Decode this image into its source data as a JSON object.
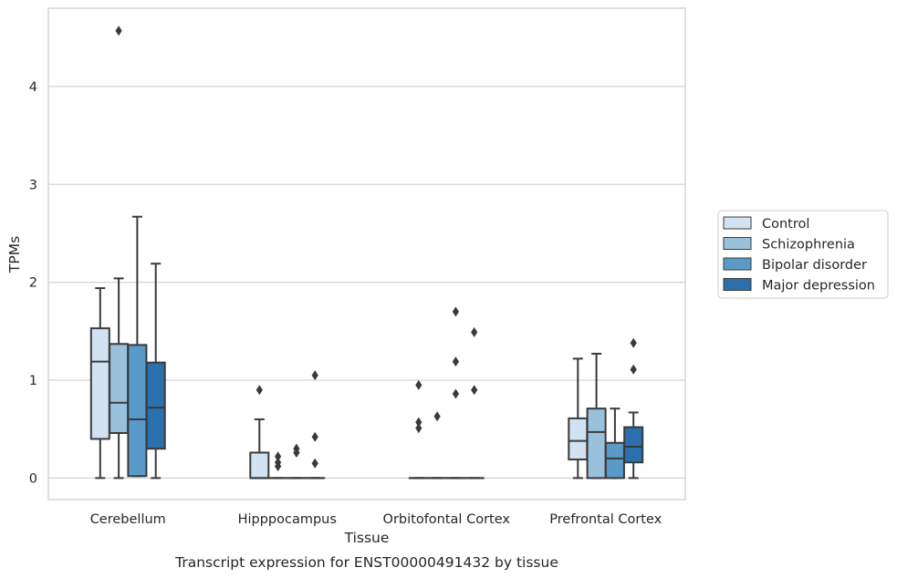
{
  "chart_data": {
    "type": "box",
    "xlabel": "Tissue",
    "ylabel": "TPMs",
    "caption": "Transcript expression for ENST00000491432 by tissue",
    "ylim": [
      -0.22,
      4.8
    ],
    "yticks": [
      0,
      1,
      2,
      3,
      4
    ],
    "grid": "horizontal",
    "legend_position": "right",
    "categories": [
      "Cerebellum",
      "Hipppocampus",
      "Orbitofontal Cortex",
      "Prefrontal Cortex"
    ],
    "series": [
      {
        "name": "Control",
        "color": "#d3e2f1",
        "boxes": [
          {
            "whislo": 0,
            "q1": 0.4,
            "med": 1.19,
            "q3": 1.53,
            "whishi": 1.94,
            "fliers": []
          },
          {
            "whislo": 0,
            "q1": 0,
            "med": 0,
            "q3": 0.26,
            "whishi": 0.6,
            "fliers": [
              0.9
            ]
          },
          {
            "whislo": 0,
            "q1": 0,
            "med": 0,
            "q3": 0,
            "whishi": 0,
            "fliers": [
              0.51,
              0.57,
              0.95
            ]
          },
          {
            "whislo": 0,
            "q1": 0.19,
            "med": 0.38,
            "q3": 0.61,
            "whishi": 1.22,
            "fliers": []
          }
        ]
      },
      {
        "name": "Schizophrenia",
        "color": "#9ac1dc",
        "boxes": [
          {
            "whislo": 0,
            "q1": 0.46,
            "med": 0.77,
            "q3": 1.37,
            "whishi": 2.04,
            "fliers": [
              4.57
            ]
          },
          {
            "whislo": 0,
            "q1": 0,
            "med": 0,
            "q3": 0,
            "whishi": 0,
            "fliers": [
              0.12,
              0.16,
              0.22
            ]
          },
          {
            "whislo": 0,
            "q1": 0,
            "med": 0,
            "q3": 0,
            "whishi": 0,
            "fliers": [
              0.63
            ]
          },
          {
            "whislo": 0,
            "q1": 0,
            "med": 0.47,
            "q3": 0.71,
            "whishi": 1.27,
            "fliers": []
          }
        ]
      },
      {
        "name": "Bipolar disorder",
        "color": "#5a9ac8",
        "boxes": [
          {
            "whislo": 0.02,
            "q1": 0.02,
            "med": 0.6,
            "q3": 1.36,
            "whishi": 2.67,
            "fliers": []
          },
          {
            "whislo": 0,
            "q1": 0,
            "med": 0,
            "q3": 0,
            "whishi": 0,
            "fliers": [
              0.26,
              0.3
            ]
          },
          {
            "whislo": 0,
            "q1": 0,
            "med": 0,
            "q3": 0,
            "whishi": 0,
            "fliers": [
              0.86,
              1.19,
              1.7
            ]
          },
          {
            "whislo": 0,
            "q1": 0,
            "med": 0.2,
            "q3": 0.36,
            "whishi": 0.71,
            "fliers": []
          }
        ]
      },
      {
        "name": "Major depression",
        "color": "#2b6fad",
        "boxes": [
          {
            "whislo": 0,
            "q1": 0.3,
            "med": 0.72,
            "q3": 1.18,
            "whishi": 2.19,
            "fliers": []
          },
          {
            "whislo": 0,
            "q1": 0,
            "med": 0,
            "q3": 0,
            "whishi": 0,
            "fliers": [
              0.15,
              0.42,
              1.05
            ]
          },
          {
            "whislo": 0,
            "q1": 0,
            "med": 0,
            "q3": 0,
            "whishi": 0,
            "fliers": [
              0.9,
              1.49
            ]
          },
          {
            "whislo": 0,
            "q1": 0.16,
            "med": 0.32,
            "q3": 0.52,
            "whishi": 0.67,
            "fliers": [
              1.11,
              1.38
            ]
          }
        ]
      }
    ]
  }
}
